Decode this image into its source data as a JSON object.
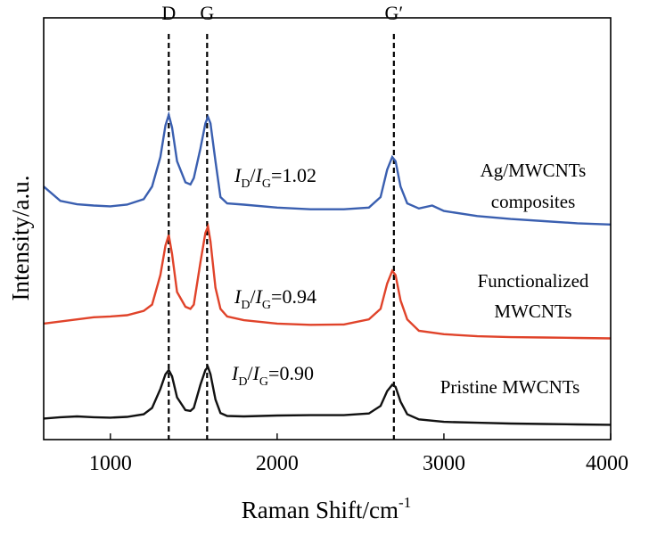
{
  "chart_data": {
    "type": "line",
    "xlabel": "Raman Shift/cm",
    "xlabel_sup": "-1",
    "ylabel": "Intensity/a.u.",
    "xlim": [
      600,
      4000
    ],
    "ylim": [
      0,
      100
    ],
    "x_ticks": [
      1000,
      2000,
      3000,
      4000
    ],
    "x_tick_labels": [
      "1000",
      "2000",
      "3000",
      "4000"
    ],
    "grid": false,
    "reference_lines": [
      {
        "label": "D",
        "x": 1350
      },
      {
        "label": "G",
        "x": 1580
      },
      {
        "label": "G′",
        "x": 2700
      }
    ],
    "series": [
      {
        "name": "Ag/MWCNTs composites",
        "label_lines": [
          "Ag/MWCNTs",
          "composites"
        ],
        "ratio_value": "=1.02",
        "color": "#3a5fb0",
        "x": [
          600,
          700,
          800,
          900,
          1000,
          1100,
          1200,
          1250,
          1300,
          1330,
          1350,
          1370,
          1400,
          1450,
          1480,
          1500,
          1540,
          1570,
          1585,
          1600,
          1630,
          1660,
          1700,
          1800,
          2000,
          2200,
          2400,
          2550,
          2620,
          2660,
          2690,
          2710,
          2740,
          2780,
          2850,
          2930,
          3000,
          3200,
          3400,
          3600,
          3800,
          4000
        ],
        "y": [
          60,
          56.6,
          55.8,
          55.5,
          55.3,
          55.7,
          57,
          60,
          67,
          74.5,
          77,
          74,
          66,
          61,
          60.5,
          62,
          69,
          75,
          76.5,
          75,
          66,
          57.5,
          56,
          55.7,
          55,
          54.6,
          54.6,
          55,
          57.5,
          64,
          67,
          66,
          60,
          56,
          54.8,
          55.5,
          54.2,
          53,
          52.3,
          51.8,
          51.3,
          51
        ]
      },
      {
        "name": "Functionalized MWCNTs",
        "label_lines": [
          "Functionalized",
          "MWCNTs"
        ],
        "ratio_value": "=0.94",
        "color": "#e0432a",
        "x": [
          600,
          700,
          800,
          900,
          1000,
          1100,
          1200,
          1250,
          1300,
          1330,
          1350,
          1370,
          1400,
          1450,
          1480,
          1500,
          1540,
          1570,
          1585,
          1600,
          1630,
          1660,
          1700,
          1800,
          2000,
          2200,
          2400,
          2550,
          2620,
          2660,
          2690,
          2710,
          2740,
          2780,
          2850,
          3000,
          3200,
          3400,
          3600,
          3800,
          4000
        ],
        "y": [
          27.5,
          28,
          28.5,
          29,
          29.2,
          29.5,
          30.5,
          32,
          39,
          46,
          48.5,
          44,
          35,
          31.5,
          31,
          32,
          42,
          49,
          50.5,
          47,
          36,
          31,
          29.2,
          28.3,
          27.5,
          27.2,
          27.3,
          28.5,
          31,
          37,
          40,
          39,
          33,
          28.5,
          25.8,
          25,
          24.5,
          24.3,
          24.2,
          24.1,
          24
        ]
      },
      {
        "name": "Pristine MWCNTs",
        "label_lines": [
          "Pristine MWCNTs"
        ],
        "ratio_value": "=0.90",
        "color": "#111111",
        "x": [
          600,
          700,
          800,
          900,
          1000,
          1100,
          1200,
          1250,
          1300,
          1330,
          1350,
          1370,
          1400,
          1450,
          1480,
          1500,
          1540,
          1570,
          1585,
          1600,
          1630,
          1660,
          1700,
          1800,
          2000,
          2200,
          2400,
          2550,
          2620,
          2660,
          2690,
          2710,
          2740,
          2780,
          2850,
          3000,
          3200,
          3400,
          3600,
          3800,
          4000
        ],
        "y": [
          5,
          5.3,
          5.5,
          5.3,
          5.2,
          5.4,
          6,
          7.5,
          12,
          15.5,
          16.5,
          15,
          10,
          7,
          6.8,
          7.5,
          13,
          16.5,
          17.2,
          15.5,
          9.5,
          6.3,
          5.6,
          5.5,
          5.7,
          5.8,
          5.8,
          6.2,
          8,
          11.5,
          13,
          12.5,
          9,
          6,
          4.8,
          4.2,
          4,
          3.8,
          3.7,
          3.6,
          3.5
        ]
      }
    ],
    "ratio_label": {
      "base": "I",
      "subscript_d": "D",
      "slash": "/",
      "subscript_g": "G"
    }
  }
}
